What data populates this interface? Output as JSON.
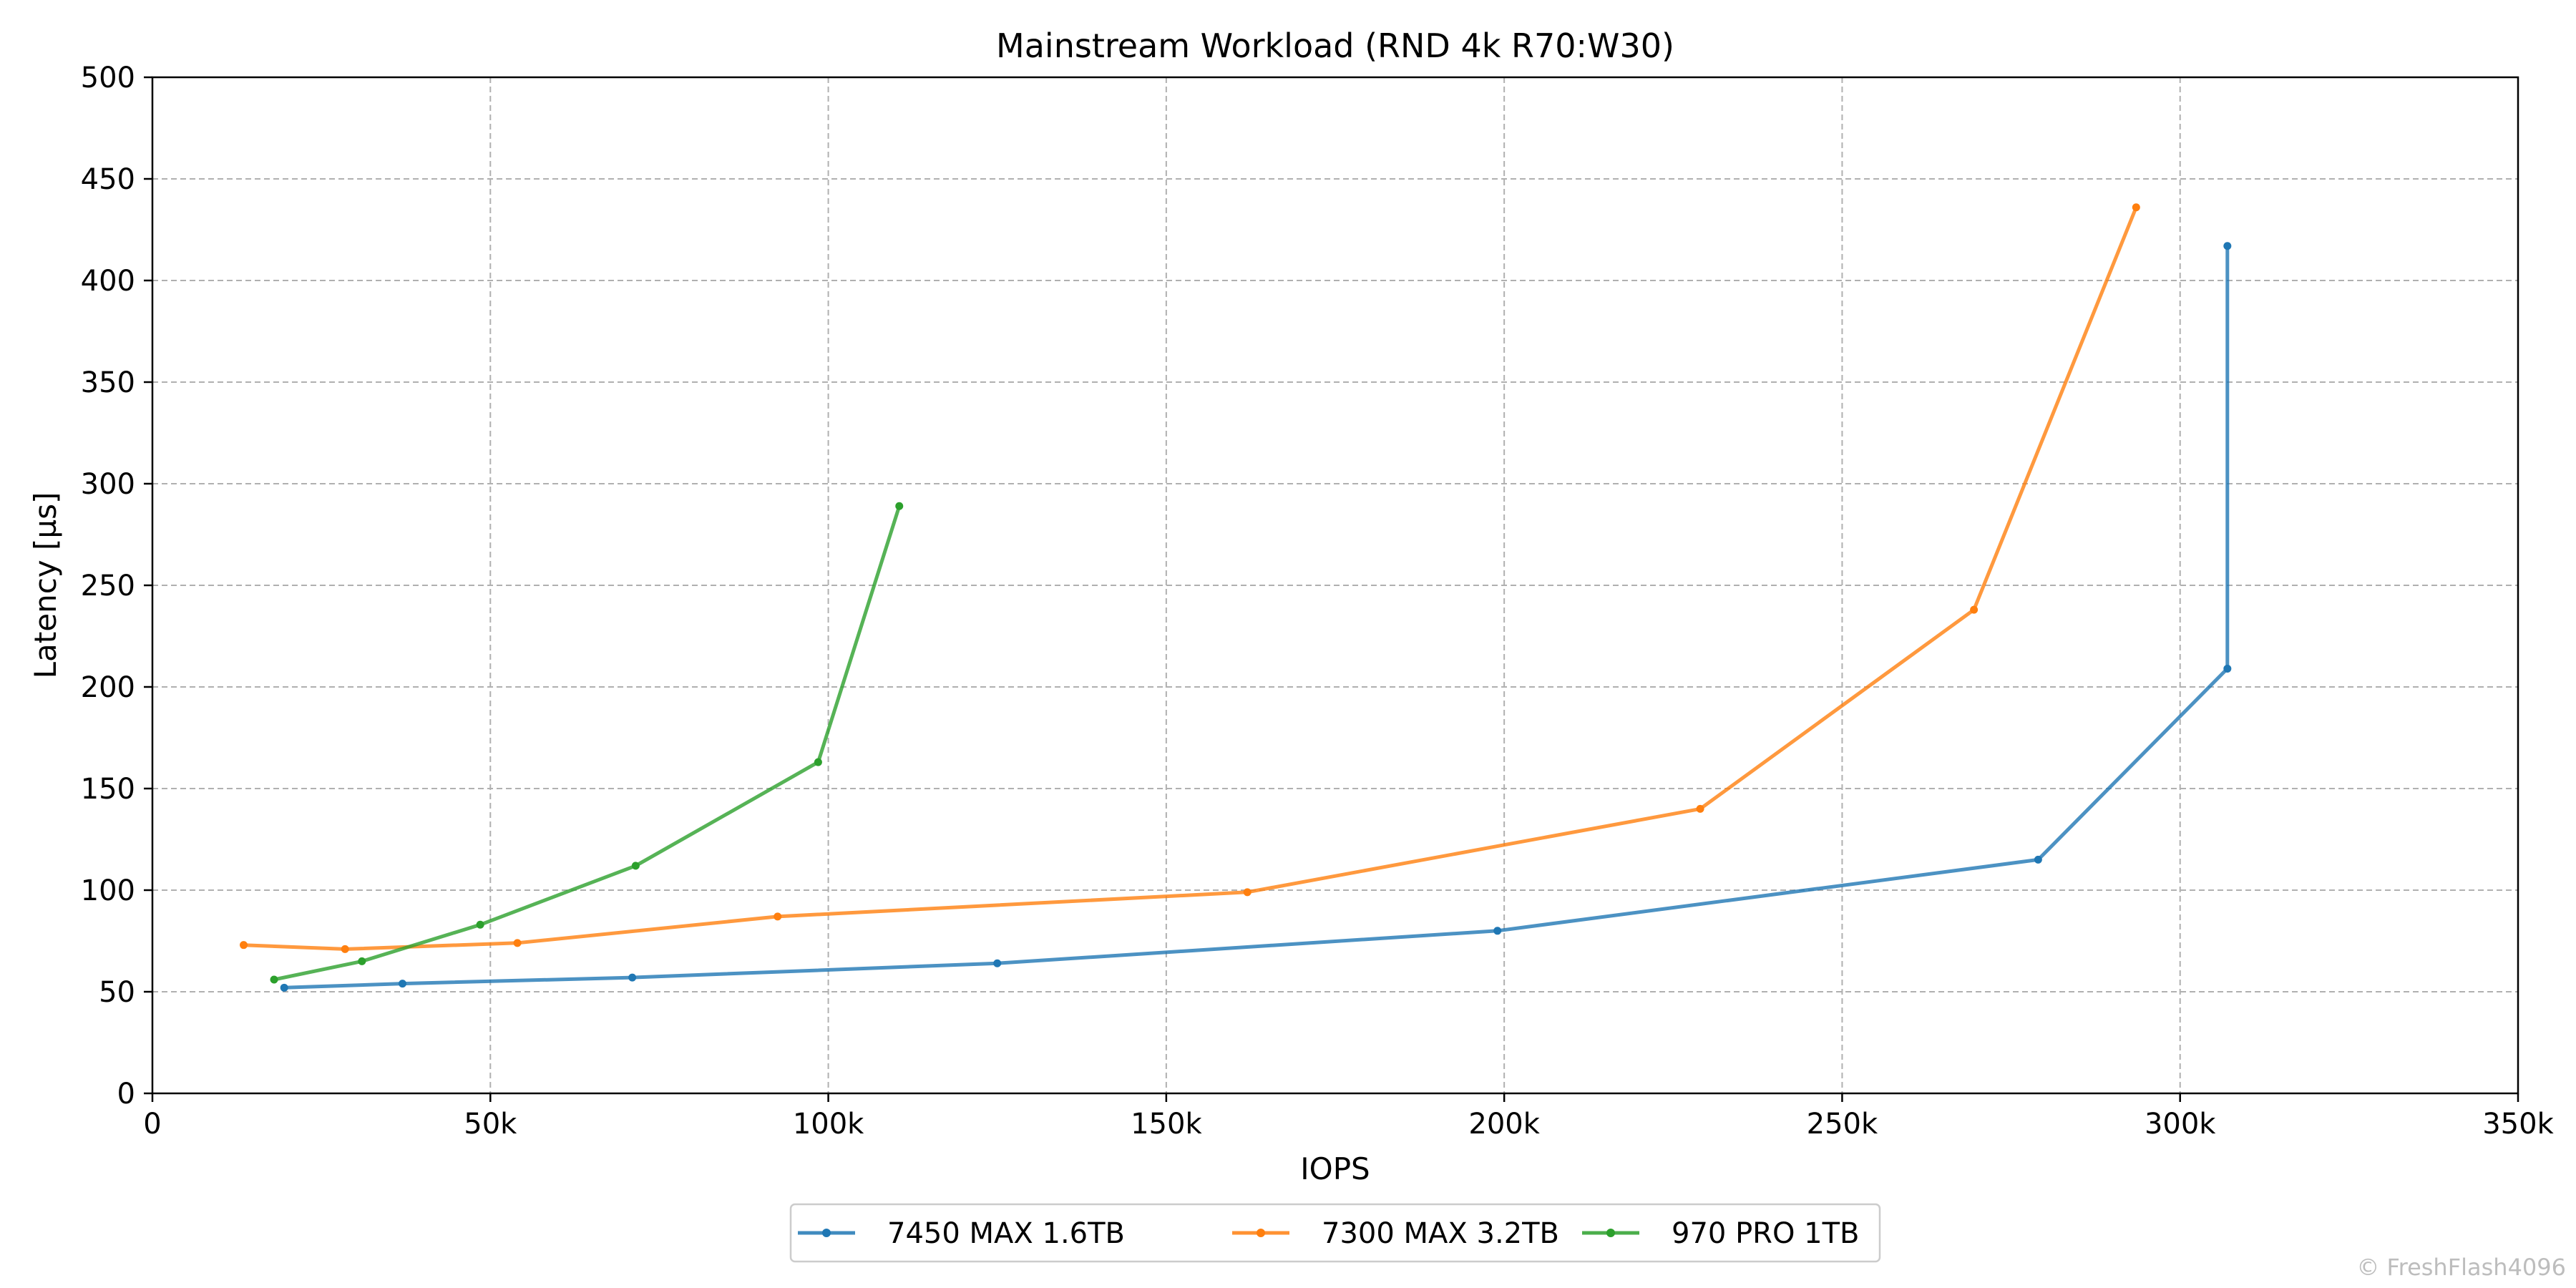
{
  "chart_data": {
    "type": "line",
    "title": "Mainstream Workload (RND 4k R70:W30)",
    "xlabel": "IOPS",
    "ylabel": "Latency [µs]",
    "xlim": [
      0,
      350000
    ],
    "ylim": [
      0,
      500
    ],
    "x_ticks": [
      0,
      50000,
      100000,
      150000,
      200000,
      250000,
      300000,
      350000
    ],
    "x_tick_labels": [
      "0",
      "50k",
      "100k",
      "150k",
      "200k",
      "250k",
      "300k",
      "350k"
    ],
    "y_ticks": [
      0,
      50,
      100,
      150,
      200,
      250,
      300,
      350,
      400,
      450,
      500
    ],
    "y_tick_labels": [
      "0",
      "50",
      "100",
      "150",
      "200",
      "250",
      "300",
      "350",
      "400",
      "450",
      "500"
    ],
    "grid": true,
    "legend_position": "bottom-center",
    "series": [
      {
        "name": "7450 MAX 1.6TB",
        "color": "#1f77b4",
        "points": [
          [
            19500,
            52
          ],
          [
            37000,
            54
          ],
          [
            71000,
            57
          ],
          [
            125000,
            64
          ],
          [
            199000,
            80
          ],
          [
            279000,
            115
          ],
          [
            307000,
            209
          ],
          [
            307000,
            417
          ]
        ]
      },
      {
        "name": "7300 MAX 3.2TB",
        "color": "#ff7f0e",
        "points": [
          [
            13500,
            73
          ],
          [
            28500,
            71
          ],
          [
            54000,
            74
          ],
          [
            92500,
            87
          ],
          [
            162000,
            99
          ],
          [
            229000,
            140
          ],
          [
            269500,
            238
          ],
          [
            293500,
            436
          ]
        ]
      },
      {
        "name": "970 PRO 1TB",
        "color": "#2ca02c",
        "points": [
          [
            18000,
            56
          ],
          [
            31000,
            65
          ],
          [
            48500,
            83
          ],
          [
            71500,
            112
          ],
          [
            98500,
            163
          ],
          [
            110500,
            289
          ]
        ]
      }
    ]
  },
  "watermark": "© FreshFlash4096"
}
